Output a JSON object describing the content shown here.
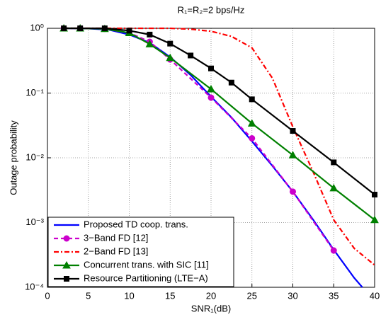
{
  "chart_data": {
    "type": "line",
    "title": "R₁=R₂=2 bps/Hz",
    "x_label": "SNR₁(dB)",
    "y_label": "Outage probability",
    "xlim": [
      0,
      40
    ],
    "xticks": [
      0,
      5,
      10,
      15,
      20,
      25,
      30,
      35,
      40
    ],
    "ylim": [
      0.0001,
      1
    ],
    "y_scale": "log",
    "yticks": [
      {
        "value": 1,
        "label": "10⁰"
      },
      {
        "value": 0.1,
        "label": "10⁻¹"
      },
      {
        "value": 0.01,
        "label": "10⁻²"
      },
      {
        "value": 0.001,
        "label": "10⁻³"
      },
      {
        "value": 0.0001,
        "label": "10⁻⁴"
      }
    ],
    "grid": true,
    "legend": "lower left",
    "series": [
      {
        "name": "Proposed TD coop. trans.",
        "color": "#0000ff",
        "style": "solid",
        "marker": "none",
        "x": [
          2,
          5,
          7.5,
          10,
          12.5,
          15,
          17.5,
          20,
          22.5,
          25,
          27.5,
          30,
          32.5,
          35,
          37.5,
          38.5
        ],
        "values": [
          1,
          0.99,
          0.95,
          0.8,
          0.6,
          0.36,
          0.19,
          0.088,
          0.042,
          0.018,
          0.0075,
          0.003,
          0.0011,
          0.00038,
          0.00014,
          0.0001
        ]
      },
      {
        "name": "3−Band FD [12]",
        "color": "#cc00cc",
        "style": "dashed",
        "marker": "circle",
        "x": [
          2,
          4,
          7,
          10,
          12.5,
          15,
          20,
          25,
          30,
          35
        ],
        "values": [
          1,
          1,
          0.98,
          0.85,
          0.62,
          0.33,
          0.085,
          0.02,
          0.003,
          0.00037
        ]
      },
      {
        "name": "2−Band FD [13]",
        "color": "#ff0000",
        "style": "dashdot",
        "marker": "none",
        "x": [
          2,
          5,
          10,
          15,
          17.5,
          20,
          22.5,
          25,
          27.5,
          30,
          32.5,
          35,
          37.5,
          40
        ],
        "values": [
          1,
          1,
          1,
          1,
          0.97,
          0.9,
          0.75,
          0.5,
          0.17,
          0.03,
          0.006,
          0.0011,
          0.0004,
          0.00022
        ]
      },
      {
        "name": "Concurrent trans. with SIC [11]",
        "color": "#008000",
        "style": "solid",
        "marker": "triangle",
        "x": [
          2,
          4,
          7,
          10,
          12.5,
          15,
          20,
          25,
          30,
          35,
          40
        ],
        "values": [
          1,
          1,
          0.98,
          0.85,
          0.57,
          0.35,
          0.115,
          0.034,
          0.011,
          0.0034,
          0.0011
        ]
      },
      {
        "name": "Resource Partitioning (LTE−A)",
        "color": "#000000",
        "style": "solid",
        "marker": "square",
        "x": [
          2,
          4,
          7,
          10,
          12.5,
          15,
          17.5,
          20,
          22.5,
          25,
          30,
          35,
          40
        ],
        "values": [
          1,
          1,
          1,
          0.92,
          0.8,
          0.58,
          0.38,
          0.24,
          0.145,
          0.08,
          0.026,
          0.0085,
          0.0027
        ]
      }
    ]
  }
}
